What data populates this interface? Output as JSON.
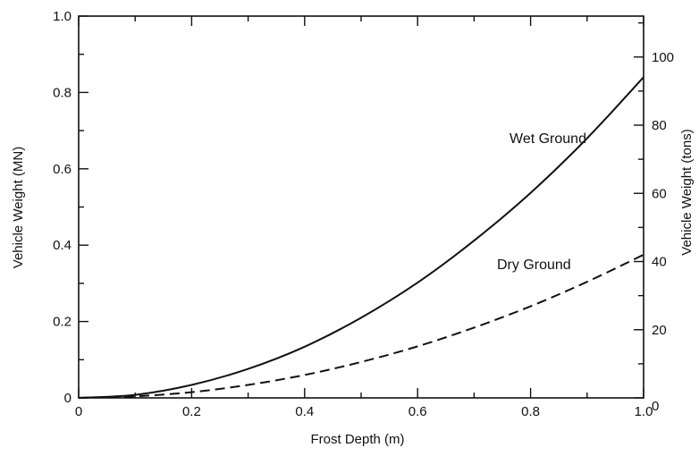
{
  "chart_data": {
    "type": "line",
    "xlabel": "Frost Depth (m)",
    "ylabel": "Vehicle Weight (MN)",
    "y2label": "Vehicle Weight (tons)",
    "xlim": [
      0,
      1.0
    ],
    "ylim": [
      0,
      1.0
    ],
    "y2lim": [
      0,
      112
    ],
    "x_ticks": [
      "0",
      "0.2",
      "0.4",
      "0.6",
      "0.8",
      "1.0"
    ],
    "y_ticks": [
      "0",
      "0.2",
      "0.4",
      "0.6",
      "0.8",
      "1.0"
    ],
    "y2_ticks": [
      "0",
      "20",
      "40",
      "60",
      "80",
      "100"
    ],
    "grid": false,
    "series": [
      {
        "name": "Wet Ground",
        "style": "solid",
        "x": [
          0,
          0.1,
          0.2,
          0.3,
          0.4,
          0.5,
          0.6,
          0.7,
          0.8,
          0.9,
          1.0
        ],
        "y": [
          0,
          0.008,
          0.034,
          0.076,
          0.134,
          0.21,
          0.302,
          0.412,
          0.537,
          0.68,
          0.84
        ]
      },
      {
        "name": "Dry Ground",
        "style": "dashed",
        "x": [
          0,
          0.1,
          0.2,
          0.3,
          0.4,
          0.5,
          0.6,
          0.7,
          0.8,
          0.9,
          1.0
        ],
        "y": [
          0,
          0.004,
          0.015,
          0.034,
          0.06,
          0.094,
          0.135,
          0.184,
          0.24,
          0.304,
          0.375
        ]
      }
    ]
  }
}
